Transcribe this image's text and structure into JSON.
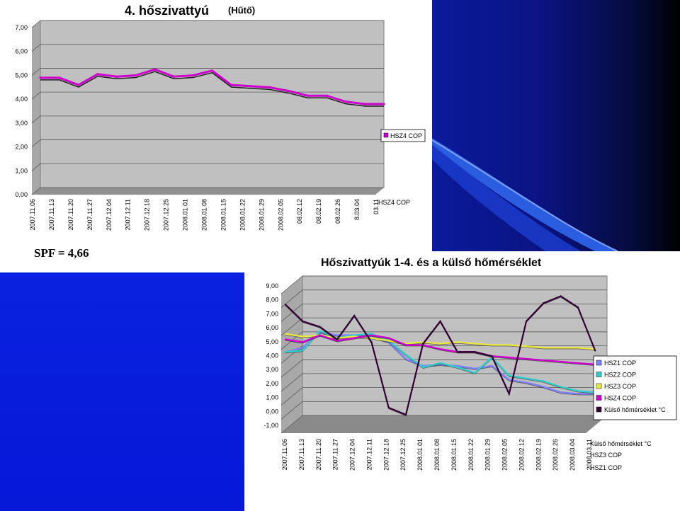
{
  "spf_label": "SPF = 4,66",
  "chart_data": [
    {
      "type": "line",
      "title": "4. hőszivattyú",
      "subtitle": "(Hűtő)",
      "categories": [
        "2007.11.06",
        "2007.11.13",
        "2007.11.20",
        "2007.11.27",
        "2007.12.04",
        "2007.12.11",
        "2007.12.18",
        "2007.12.25",
        "2008.01.01",
        "2008.01.08",
        "2008.01.15",
        "2008.01.22",
        "2008.01.29",
        "2008.02.05",
        "2008.02.12",
        "2008.02.19",
        "2008.02.26",
        "2008.03.04",
        "2008.03.11"
      ],
      "category_labels": [
        "2007.11.06",
        "2007.11.13",
        "2007.11.20",
        "2007.11.27",
        "2007.12.04",
        "2007.12.11",
        "2007.12.18",
        "2007.12.25",
        "2008.01.01",
        "2008.01.08",
        "2008.01.15",
        "2008.01.22",
        "2008.01.29",
        "2008.02.05",
        "08.02.12",
        "08.02.19",
        "08.02.26",
        "8.03.04",
        "03.11"
      ],
      "ylim": [
        0,
        7
      ],
      "yticks": [
        "0,00",
        "1,00",
        "2,00",
        "3,00",
        "4,00",
        "5,00",
        "6,00",
        "7,00"
      ],
      "depth_label": "HSZ4 COP",
      "legend": [
        "HSZ4 COP"
      ],
      "series": [
        {
          "name": "HSZ4 COP",
          "color": "#cc00cc",
          "values": [
            4.6,
            4.6,
            4.3,
            4.75,
            4.65,
            4.7,
            4.95,
            4.65,
            4.7,
            4.9,
            4.3,
            4.25,
            4.2,
            4.05,
            3.85,
            3.85,
            3.6,
            3.5,
            3.5
          ]
        }
      ]
    },
    {
      "type": "line",
      "title": "Hőszivattyúk 1-4. és a külső hőmérséklet",
      "categories": [
        "2007.11.06",
        "2007.11.13",
        "2007.11.20",
        "2007.11.27",
        "2007.12.04",
        "2007.12.11",
        "2007.12.18",
        "2007.12.25",
        "2008.01.01",
        "2008.01.08",
        "2008.01.15",
        "2008.01.22",
        "2008.01.29",
        "2008.02.05",
        "2008.02.12",
        "2008.02.19",
        "2008.02.26",
        "2008.03.04",
        "2008.03.11"
      ],
      "ylim": [
        -1,
        9
      ],
      "yticks": [
        "-1,00",
        "0,00",
        "1,00",
        "2,00",
        "3,00",
        "4,00",
        "5,00",
        "6,00",
        "7,00",
        "8,00",
        "9,00"
      ],
      "depth_labels": [
        "Külső hőmérséklet °C",
        "HSZ3 COP",
        "HSZ1 COP"
      ],
      "legend": [
        "HSZ1 COP",
        "HSZ2 COP",
        "HSZ3 COP",
        "HSZ4 COP",
        "Külső hőmérséklet °C"
      ],
      "series": [
        {
          "name": "HSZ1 COP",
          "color": "#8080ff",
          "values": [
            4.0,
            4.3,
            5.4,
            5.2,
            5.2,
            5.1,
            4.7,
            3.5,
            3.0,
            3.1,
            3.0,
            2.8,
            3.0,
            2.0,
            1.8,
            1.5,
            1.1,
            1.0,
            1.0
          ]
        },
        {
          "name": "HSZ2 COP",
          "color": "#33cccc",
          "values": [
            4.0,
            4.1,
            5.5,
            5.0,
            5.2,
            5.3,
            4.8,
            3.8,
            2.9,
            3.2,
            2.9,
            2.5,
            3.6,
            2.3,
            2.1,
            1.9,
            1.5,
            1.2,
            1.1
          ]
        },
        {
          "name": "HSZ3 COP",
          "color": "#e8e840",
          "values": [
            5.3,
            5.1,
            5.2,
            5.0,
            5.1,
            5.0,
            4.8,
            4.6,
            4.7,
            4.6,
            4.7,
            4.6,
            4.5,
            4.5,
            4.4,
            4.3,
            4.3,
            4.3,
            4.2
          ]
        },
        {
          "name": "HSZ4 COP",
          "color": "#cc00cc",
          "values": [
            4.9,
            4.7,
            5.2,
            4.8,
            5.0,
            5.2,
            5.0,
            4.5,
            4.5,
            4.2,
            4.0,
            4.0,
            3.7,
            3.6,
            3.5,
            3.4,
            3.3,
            3.2,
            3.1
          ]
        },
        {
          "name": "Külső hőmérséklet °C",
          "color": "#330033",
          "values": [
            7.4,
            6.2,
            5.8,
            4.9,
            6.6,
            4.7,
            0.0,
            -0.5,
            4.6,
            6.2,
            4.0,
            4.0,
            3.7,
            1.0,
            6.2,
            7.5,
            8.0,
            7.2,
            4.1
          ]
        }
      ]
    }
  ]
}
